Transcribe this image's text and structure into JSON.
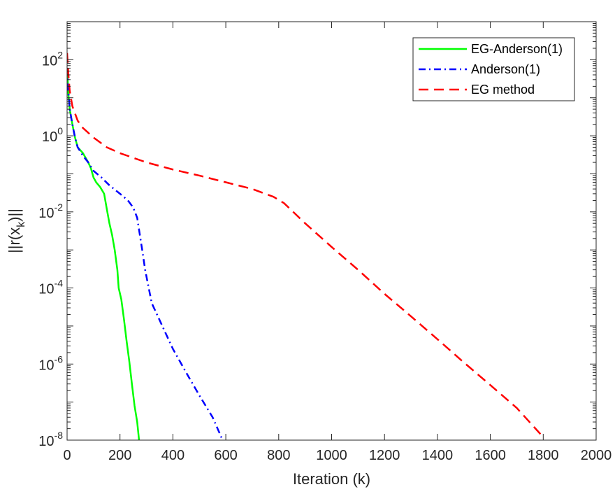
{
  "chart_data": {
    "type": "line",
    "xlabel": "Iteration (k)",
    "ylabel": "||r(x_k)||",
    "xlim": [
      0,
      2000
    ],
    "ylim_exponents": [
      -8,
      3
    ],
    "yscale": "log",
    "x_ticks": [
      0,
      200,
      400,
      600,
      800,
      1000,
      1200,
      1400,
      1600,
      1800,
      2000
    ],
    "y_tick_exponents": [
      -8,
      -6,
      -4,
      -2,
      0,
      2
    ],
    "grid": false,
    "legend_position": "top-right",
    "series": [
      {
        "name": "EG-Anderson(1)",
        "color": "#00ff00",
        "dash": "solid",
        "points": [
          [
            0,
            60
          ],
          [
            5,
            12
          ],
          [
            10,
            5
          ],
          [
            20,
            2
          ],
          [
            30,
            0.9
          ],
          [
            40,
            0.5
          ],
          [
            60,
            0.35
          ],
          [
            80,
            0.2
          ],
          [
            90,
            0.14
          ],
          [
            100,
            0.08
          ],
          [
            110,
            0.06
          ],
          [
            125,
            0.045
          ],
          [
            140,
            0.03
          ],
          [
            150,
            0.012
          ],
          [
            160,
            0.005
          ],
          [
            170,
            0.0025
          ],
          [
            180,
            0.001
          ],
          [
            190,
            0.0003
          ],
          [
            195,
            0.0001
          ],
          [
            205,
            5e-05
          ],
          [
            215,
            1.5e-05
          ],
          [
            225,
            4e-06
          ],
          [
            235,
            1.2e-06
          ],
          [
            245,
            3e-07
          ],
          [
            255,
            8e-08
          ],
          [
            265,
            3e-08
          ],
          [
            272,
            1e-08
          ]
        ]
      },
      {
        "name": "Anderson(1)",
        "color": "#0000ff",
        "dash": "dashdot",
        "points": [
          [
            0,
            60
          ],
          [
            5,
            15
          ],
          [
            10,
            5
          ],
          [
            20,
            2
          ],
          [
            30,
            0.9
          ],
          [
            40,
            0.5
          ],
          [
            60,
            0.3
          ],
          [
            80,
            0.2
          ],
          [
            100,
            0.12
          ],
          [
            130,
            0.08
          ],
          [
            160,
            0.05
          ],
          [
            200,
            0.03
          ],
          [
            230,
            0.02
          ],
          [
            250,
            0.013
          ],
          [
            265,
            0.007
          ],
          [
            275,
            0.0025
          ],
          [
            285,
            0.0009
          ],
          [
            295,
            0.0003
          ],
          [
            320,
            4e-05
          ],
          [
            360,
            1e-05
          ],
          [
            400,
            2.5e-06
          ],
          [
            450,
            6e-07
          ],
          [
            500,
            1.5e-07
          ],
          [
            550,
            4e-08
          ],
          [
            588,
            1e-08
          ]
        ]
      },
      {
        "name": "EG method",
        "color": "#ff0000",
        "dash": "dashed",
        "points": [
          [
            0,
            150
          ],
          [
            5,
            40
          ],
          [
            10,
            15
          ],
          [
            20,
            6
          ],
          [
            40,
            2.5
          ],
          [
            60,
            1.6
          ],
          [
            100,
            0.9
          ],
          [
            150,
            0.5
          ],
          [
            200,
            0.35
          ],
          [
            300,
            0.2
          ],
          [
            400,
            0.13
          ],
          [
            500,
            0.09
          ],
          [
            600,
            0.06
          ],
          [
            700,
            0.04
          ],
          [
            780,
            0.025
          ],
          [
            820,
            0.017
          ],
          [
            900,
            0.005
          ],
          [
            1000,
            0.0012
          ],
          [
            1100,
            0.0003
          ],
          [
            1200,
            7e-05
          ],
          [
            1300,
            1.8e-05
          ],
          [
            1400,
            4.5e-06
          ],
          [
            1500,
            1.1e-06
          ],
          [
            1600,
            2.8e-07
          ],
          [
            1700,
            7e-08
          ],
          [
            1800,
            1.2e-08
          ]
        ]
      }
    ]
  }
}
